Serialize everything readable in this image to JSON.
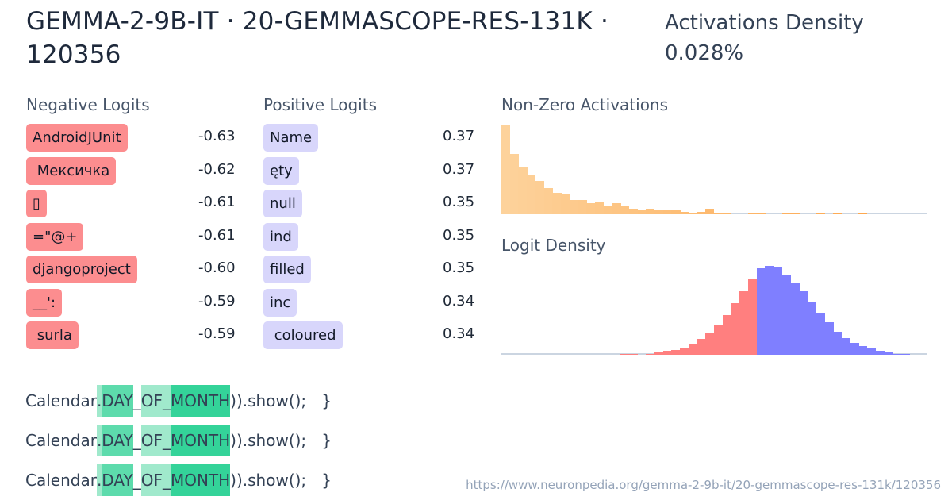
{
  "header": {
    "title": "GEMMA-2-9B-IT · 20-GEMMASCOPE-RES-131K · 120356",
    "density_label": "Activations Density",
    "density_value": "0.028%"
  },
  "negative_logits": {
    "label": "Negative Logits",
    "items": [
      {
        "token": "AndroidJUnit",
        "value": "-0.63"
      },
      {
        "token": " Мексичка",
        "value": "-0.62"
      },
      {
        "token": "▯",
        "value": "-0.61"
      },
      {
        "token": "=\"@+",
        "value": "-0.61"
      },
      {
        "token": "djangoproject",
        "value": "-0.60"
      },
      {
        "token": "__':",
        "value": "-0.59"
      },
      {
        "token": " surla",
        "value": "-0.59"
      }
    ]
  },
  "positive_logits": {
    "label": "Positive Logits",
    "items": [
      {
        "token": "Name",
        "value": "0.37"
      },
      {
        "token": "ęty",
        "value": "0.37"
      },
      {
        "token": "null",
        "value": "0.35"
      },
      {
        "token": "ind",
        "value": "0.35"
      },
      {
        "token": "filled",
        "value": "0.35"
      },
      {
        "token": "inc",
        "value": "0.34"
      },
      {
        "token": " coloured",
        "value": "0.34"
      }
    ]
  },
  "colors": {
    "negative": "#fc8d8f",
    "positive": "#d8d6fb",
    "activation_bar": "#fdba74",
    "logit_neg_bar": "#ff7f7f",
    "logit_pos_bar": "#7f7fff",
    "highlight_light": "#a0e9cc",
    "highlight_mid": "#5ddbac",
    "highlight_strong": "#34d399"
  },
  "chart_data": [
    {
      "type": "bar",
      "title": "Non-Zero Activations",
      "xlabel": "",
      "ylabel": "",
      "grid": false,
      "values": [
        111,
        75,
        58,
        49,
        42,
        33,
        27,
        25,
        18,
        18,
        14,
        15,
        11,
        14,
        10,
        7,
        6,
        7,
        5,
        5,
        6,
        3,
        2,
        3,
        7,
        2,
        1,
        0,
        0,
        2,
        2,
        0,
        0,
        2,
        1,
        0,
        0,
        1,
        0,
        1,
        0,
        0,
        1,
        0,
        0,
        0,
        0,
        0,
        0,
        0
      ]
    },
    {
      "type": "bar",
      "title": "Logit Density",
      "xlabel": "",
      "ylabel": "",
      "grid": false,
      "split_index": 30,
      "values": [
        0,
        0,
        0,
        0,
        0,
        0,
        0,
        0,
        0,
        0,
        0,
        0,
        0,
        0,
        1,
        1,
        0,
        1,
        2,
        3,
        4,
        6,
        9,
        13,
        18,
        25,
        33,
        43,
        53,
        63,
        72,
        74,
        73,
        66,
        60,
        53,
        44,
        35,
        27,
        19,
        14,
        10,
        7,
        5,
        3,
        2,
        1,
        1,
        0,
        0
      ]
    }
  ],
  "snippets": [
    [
      {
        "text": "Calendar",
        "level": 0
      },
      {
        "text": ".",
        "level": 1
      },
      {
        "text": "DAY",
        "level": 2
      },
      {
        "text": "_",
        "level": 0
      },
      {
        "text": "OF",
        "level": 1
      },
      {
        "text": "_",
        "level": 1
      },
      {
        "text": "MONTH",
        "level": 3
      },
      {
        "text": ")).show();   }",
        "level": 0
      }
    ],
    [
      {
        "text": "Calendar",
        "level": 0
      },
      {
        "text": ".",
        "level": 1
      },
      {
        "text": "DAY",
        "level": 2
      },
      {
        "text": "_",
        "level": 0
      },
      {
        "text": "OF",
        "level": 1
      },
      {
        "text": "_",
        "level": 1
      },
      {
        "text": "MONTH",
        "level": 3
      },
      {
        "text": ")).show();   }",
        "level": 0
      }
    ],
    [
      {
        "text": "Calendar",
        "level": 0
      },
      {
        "text": ".",
        "level": 1
      },
      {
        "text": "DAY",
        "level": 2
      },
      {
        "text": "_",
        "level": 0
      },
      {
        "text": "OF",
        "level": 1
      },
      {
        "text": "_",
        "level": 1
      },
      {
        "text": "MONTH",
        "level": 3
      },
      {
        "text": ")).show();   }",
        "level": 0
      }
    ]
  ],
  "footer": {
    "url": "https://www.neuronpedia.org/gemma-2-9b-it/20-gemmascope-res-131k/120356"
  }
}
